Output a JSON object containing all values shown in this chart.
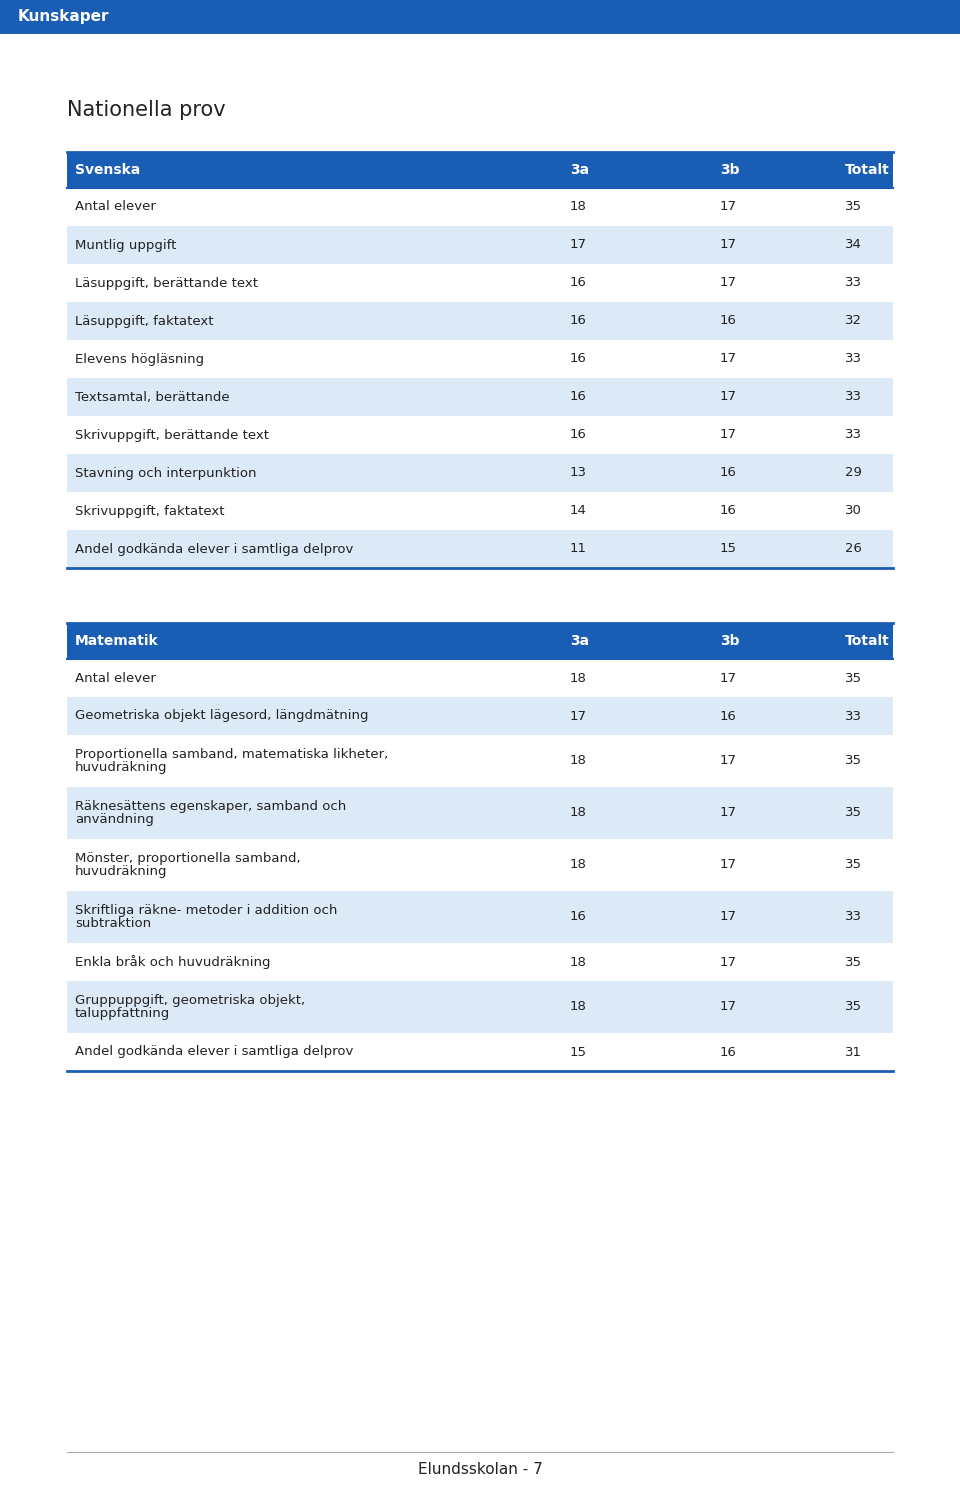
{
  "page_header": "Kunskaper",
  "page_header_bg": "#1a5db5",
  "page_header_text_color": "#ffffff",
  "page_title": "Nationella prov",
  "footer_text": "Elundsskolan - 7",
  "header_bg": "#1a5db5",
  "header_text_color": "#ffffff",
  "row_alt_bg": "#dce9f7",
  "row_white_bg": "#ffffff",
  "text_color": "#222222",
  "border_color": "#1a5db5",
  "svenska_table": {
    "header": [
      "Svenska",
      "3a",
      "3b",
      "Totalt"
    ],
    "rows": [
      [
        "Antal elever",
        "18",
        "17",
        "35",
        false
      ],
      [
        "Muntlig uppgift",
        "17",
        "17",
        "34",
        true
      ],
      [
        "Läsuppgift, berättande text",
        "16",
        "17",
        "33",
        false
      ],
      [
        "Läsuppgift, faktatext",
        "16",
        "16",
        "32",
        true
      ],
      [
        "Elevens högläsning",
        "16",
        "17",
        "33",
        false
      ],
      [
        "Textsamtal, berättande",
        "16",
        "17",
        "33",
        true
      ],
      [
        "Skrivuppgift, berättande text",
        "16",
        "17",
        "33",
        false
      ],
      [
        "Stavning och interpunktion",
        "13",
        "16",
        "29",
        true
      ],
      [
        "Skrivuppgift, faktatext",
        "14",
        "16",
        "30",
        false
      ],
      [
        "Andel godkända elever i samtliga delprov",
        "11",
        "15",
        "26",
        true
      ]
    ]
  },
  "matematik_table": {
    "header": [
      "Matematik",
      "3a",
      "3b",
      "Totalt"
    ],
    "rows": [
      [
        "Antal elever",
        "18",
        "17",
        "35",
        false
      ],
      [
        "Geometriska objekt lägesord, längdmätning",
        "17",
        "16",
        "33",
        true
      ],
      [
        "Proportionella samband, matematiska likheter,\nhuvudräkning",
        "18",
        "17",
        "35",
        false
      ],
      [
        "Räknesättens egenskaper, samband och\nanvändning",
        "18",
        "17",
        "35",
        true
      ],
      [
        "Mönster, proportionella samband,\nhuvudräkning",
        "18",
        "17",
        "35",
        false
      ],
      [
        "Skriftliga räkne- metoder i addition och\nsubtraktion",
        "16",
        "17",
        "33",
        true
      ],
      [
        "Enkla bråk och huvudräkning",
        "18",
        "17",
        "35",
        false
      ],
      [
        "Gruppuppgift, geometriska objekt,\ntaluppfattning",
        "18",
        "17",
        "35",
        true
      ],
      [
        "Andel godkända elever i samtliga delprov",
        "15",
        "16",
        "31",
        false
      ]
    ]
  }
}
